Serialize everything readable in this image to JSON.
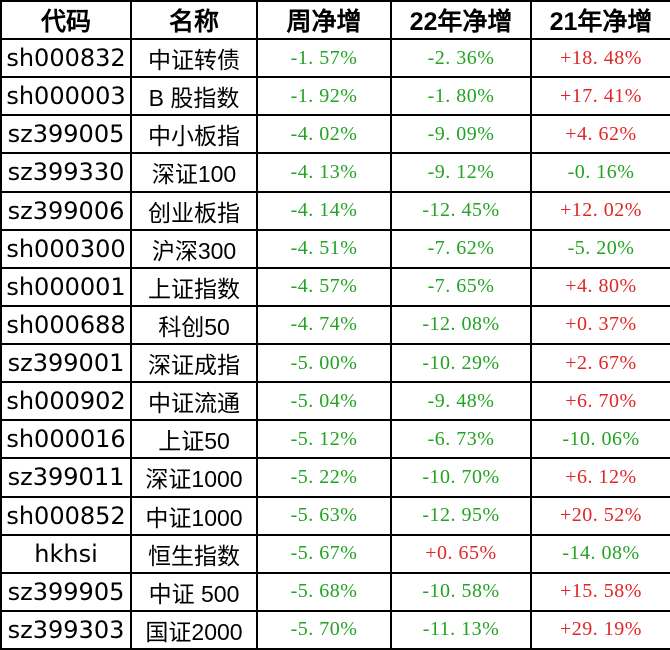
{
  "colors": {
    "positive_red": "#e02626",
    "negative_green": "#22a322",
    "border_black": "#000000",
    "background": "#ffffff",
    "header_text": "#000000"
  },
  "table": {
    "columns": [
      {
        "label": "代码"
      },
      {
        "label": "名称"
      },
      {
        "label": "周净增"
      },
      {
        "label": "22年净增"
      },
      {
        "label": "21年净增"
      }
    ],
    "rows": [
      {
        "code": "sh000832",
        "name": "中证转债",
        "week": "-1. 57%",
        "y22": "-2. 36%",
        "y21": "+18. 48%"
      },
      {
        "code": "sh000003",
        "name": "B 股指数",
        "week": "-1. 92%",
        "y22": "-1. 80%",
        "y21": "+17. 41%"
      },
      {
        "code": "sz399005",
        "name": "中小板指",
        "week": "-4. 02%",
        "y22": "-9. 09%",
        "y21": "+4. 62%"
      },
      {
        "code": "sz399330",
        "name": "深证100",
        "week": "-4. 13%",
        "y22": "-9. 12%",
        "y21": "-0. 16%"
      },
      {
        "code": "sz399006",
        "name": "创业板指",
        "week": "-4. 14%",
        "y22": "-12. 45%",
        "y21": "+12. 02%"
      },
      {
        "code": "sh000300",
        "name": "沪深300",
        "week": "-4. 51%",
        "y22": "-7. 62%",
        "y21": "-5. 20%"
      },
      {
        "code": "sh000001",
        "name": "上证指数",
        "week": "-4. 57%",
        "y22": "-7. 65%",
        "y21": "+4. 80%"
      },
      {
        "code": "sh000688",
        "name": "科创50",
        "week": "-4. 74%",
        "y22": "-12. 08%",
        "y21": "+0. 37%"
      },
      {
        "code": "sz399001",
        "name": "深证成指",
        "week": "-5. 00%",
        "y22": "-10. 29%",
        "y21": "+2. 67%"
      },
      {
        "code": "sh000902",
        "name": "中证流通",
        "week": "-5. 04%",
        "y22": "-9. 48%",
        "y21": "+6. 70%"
      },
      {
        "code": "sh000016",
        "name": "上证50",
        "week": "-5. 12%",
        "y22": "-6. 73%",
        "y21": "-10. 06%"
      },
      {
        "code": "sz399011",
        "name": "深证1000",
        "week": "-5. 22%",
        "y22": "-10. 70%",
        "y21": "+6. 12%"
      },
      {
        "code": "sh000852",
        "name": "中证1000",
        "week": "-5. 63%",
        "y22": "-12. 95%",
        "y21": "+20. 52%"
      },
      {
        "code": "hkhsi",
        "name": "恒生指数",
        "week": "-5. 67%",
        "y22": "+0. 65%",
        "y21": "-14. 08%"
      },
      {
        "code": "sz399905",
        "name": "中证 500",
        "week": "-5. 68%",
        "y22": "-10. 58%",
        "y21": "+15. 58%"
      },
      {
        "code": "sz399303",
        "name": "国证2000",
        "week": "-5. 70%",
        "y22": "-11. 13%",
        "y21": "+29. 19%"
      }
    ]
  },
  "chart_data": {
    "type": "table",
    "title": "",
    "unit": "%",
    "columns": [
      "代码",
      "名称",
      "周净增",
      "22年净增",
      "21年净增"
    ],
    "rows": [
      [
        "sh000832",
        "中证转债",
        -1.57,
        -2.36,
        18.48
      ],
      [
        "sh000003",
        "B 股指数",
        -1.92,
        -1.8,
        17.41
      ],
      [
        "sz399005",
        "中小板指",
        -4.02,
        -9.09,
        4.62
      ],
      [
        "sz399330",
        "深证100",
        -4.13,
        -9.12,
        -0.16
      ],
      [
        "sz399006",
        "创业板指",
        -4.14,
        -12.45,
        12.02
      ],
      [
        "sh000300",
        "沪深300",
        -4.51,
        -7.62,
        -5.2
      ],
      [
        "sh000001",
        "上证指数",
        -4.57,
        -7.65,
        4.8
      ],
      [
        "sh000688",
        "科创50",
        -4.74,
        -12.08,
        0.37
      ],
      [
        "sz399001",
        "深证成指",
        -5.0,
        -10.29,
        2.67
      ],
      [
        "sh000902",
        "中证流通",
        -5.04,
        -9.48,
        6.7
      ],
      [
        "sh000016",
        "上证50",
        -5.12,
        -6.73,
        -10.06
      ],
      [
        "sz399011",
        "深证1000",
        -5.22,
        -10.7,
        6.12
      ],
      [
        "sh000852",
        "中证1000",
        -5.63,
        -12.95,
        20.52
      ],
      [
        "hkhsi",
        "恒生指数",
        -5.67,
        0.65,
        -14.08
      ],
      [
        "sz399905",
        "中证 500",
        -5.68,
        -10.58,
        15.58
      ],
      [
        "sz399303",
        "国证2000",
        -5.7,
        -11.13,
        29.19
      ]
    ],
    "value_color_rule": "positive values red, negative values green"
  }
}
